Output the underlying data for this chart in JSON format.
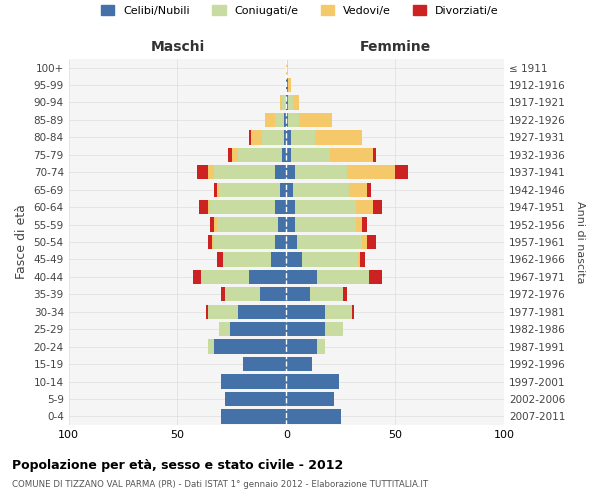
{
  "age_groups": [
    "0-4",
    "5-9",
    "10-14",
    "15-19",
    "20-24",
    "25-29",
    "30-34",
    "35-39",
    "40-44",
    "45-49",
    "50-54",
    "55-59",
    "60-64",
    "65-69",
    "70-74",
    "75-79",
    "80-84",
    "85-89",
    "90-94",
    "95-99",
    "100+"
  ],
  "birth_years": [
    "2007-2011",
    "2002-2006",
    "1997-2001",
    "1992-1996",
    "1987-1991",
    "1982-1986",
    "1977-1981",
    "1972-1976",
    "1967-1971",
    "1962-1966",
    "1957-1961",
    "1952-1956",
    "1947-1951",
    "1942-1946",
    "1937-1941",
    "1932-1936",
    "1927-1931",
    "1922-1926",
    "1917-1921",
    "1912-1916",
    "≤ 1911"
  ],
  "colors": {
    "celibi": "#4472a8",
    "coniugati": "#c8dba0",
    "vedovi": "#f5c96a",
    "divorziati": "#cc2222"
  },
  "males": {
    "celibi": [
      30,
      28,
      30,
      20,
      33,
      26,
      22,
      12,
      17,
      7,
      5,
      4,
      5,
      3,
      5,
      2,
      1,
      1,
      0,
      0,
      0
    ],
    "coniugati": [
      0,
      0,
      0,
      0,
      3,
      5,
      14,
      16,
      22,
      22,
      28,
      28,
      30,
      28,
      28,
      20,
      10,
      4,
      2,
      0,
      0
    ],
    "vedovi": [
      0,
      0,
      0,
      0,
      0,
      0,
      0,
      0,
      0,
      0,
      1,
      1,
      1,
      1,
      3,
      3,
      5,
      5,
      1,
      0,
      0
    ],
    "divorziati": [
      0,
      0,
      0,
      0,
      0,
      0,
      1,
      2,
      4,
      3,
      2,
      2,
      4,
      1,
      5,
      2,
      1,
      0,
      0,
      0,
      0
    ]
  },
  "females": {
    "celibi": [
      25,
      22,
      24,
      12,
      14,
      18,
      18,
      11,
      14,
      7,
      5,
      4,
      4,
      3,
      4,
      2,
      2,
      1,
      1,
      1,
      0
    ],
    "coniugati": [
      0,
      0,
      0,
      0,
      4,
      8,
      12,
      15,
      24,
      26,
      30,
      28,
      28,
      26,
      24,
      18,
      11,
      5,
      2,
      0,
      0
    ],
    "vedovi": [
      0,
      0,
      0,
      0,
      0,
      0,
      0,
      0,
      0,
      1,
      2,
      3,
      8,
      8,
      22,
      20,
      22,
      15,
      3,
      1,
      1
    ],
    "divorziati": [
      0,
      0,
      0,
      0,
      0,
      0,
      1,
      2,
      6,
      2,
      4,
      2,
      4,
      2,
      6,
      1,
      0,
      0,
      0,
      0,
      0
    ]
  },
  "title": "Popolazione per età, sesso e stato civile - 2012",
  "subtitle": "COMUNE DI TIZZANO VAL PARMA (PR) - Dati ISTAT 1° gennaio 2012 - Elaborazione TUTTITALIA.IT",
  "ylabel": "Fasce di età",
  "ylabel_right": "Anni di nascita",
  "xlabel_left": "Maschi",
  "xlabel_right": "Femmine",
  "legend_labels": [
    "Celibi/Nubili",
    "Coniugati/e",
    "Vedovi/e",
    "Divorziati/e"
  ],
  "xlim": 100,
  "plot_bg": "#f5f5f5",
  "fig_bg": "#ffffff",
  "grid_color": "#dddddd"
}
